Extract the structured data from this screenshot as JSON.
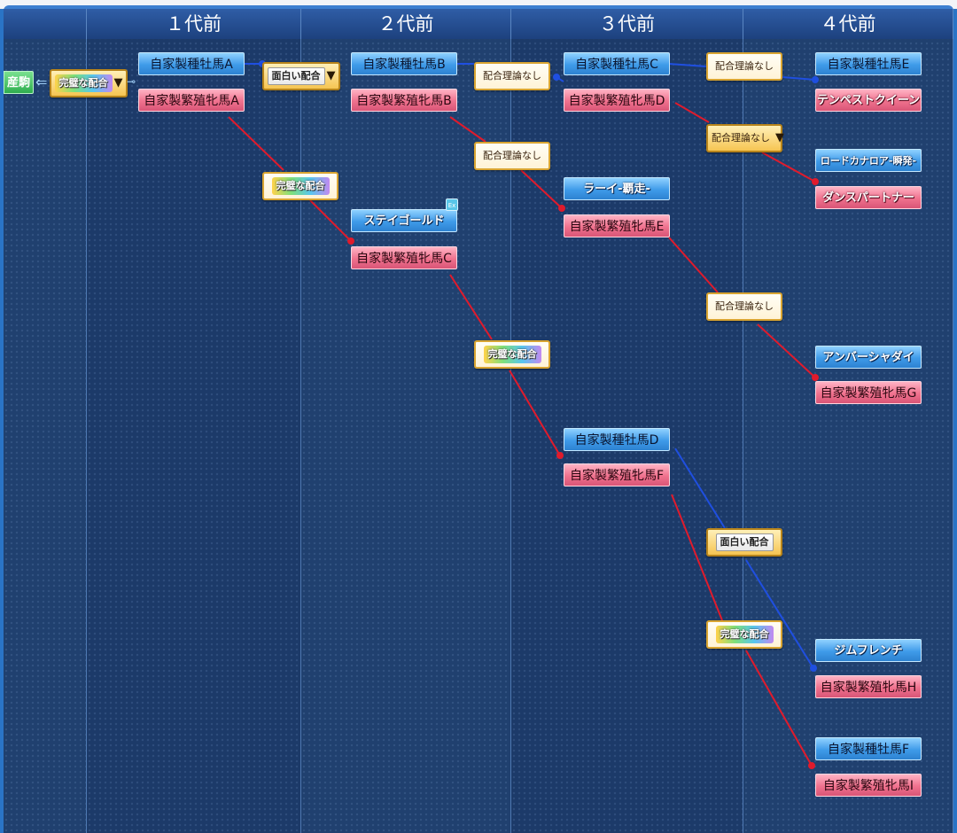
{
  "columns": [
    {
      "label": ""
    },
    {
      "label": "１代前"
    },
    {
      "label": "２代前"
    },
    {
      "label": "３代前"
    },
    {
      "label": "４代前"
    }
  ],
  "foal": {
    "label": "産駒"
  },
  "gen1": {
    "sire": "自家製種牡馬A",
    "dam": "自家製繁殖牝馬A"
  },
  "gen2": {
    "sire_b": "自家製種牡馬B",
    "dam_b": "自家製繁殖牝馬B",
    "sire_stay": "ステイゴールド",
    "dam_c": "自家製繁殖牝馬C",
    "stay_tag": "Ex"
  },
  "gen3": {
    "sire_c": "自家製種牡馬C",
    "dam_d": "自家製繁殖牝馬D",
    "sire_rai": "ラーイ-覇走-",
    "dam_e": "自家製繁殖牝馬E",
    "sire_d": "自家製種牡馬D",
    "dam_f": "自家製繁殖牝馬F"
  },
  "gen4": {
    "sire_e": "自家製種牡馬E",
    "dam_tempest": "テンペストクイーン",
    "sire_lord": "ロードカナロア-瞬発-",
    "dam_dance": "ダンスパートナー",
    "sire_amber": "アンバーシャダイ",
    "dam_g": "自家製繁殖牝馬G",
    "sire_jim": "ジムフレンチ",
    "dam_h": "自家製繁殖牝馬H",
    "sire_f": "自家製種牡馬F",
    "dam_i": "自家製繁殖牝馬I"
  },
  "badges": {
    "b0": "完璧な配合",
    "b1": "面白い配合",
    "b2": "配合理論なし",
    "b3": "配合理論なし",
    "b4": "配合理論なし",
    "b5": "完璧な配合",
    "b6": "配合理論なし",
    "b7": "完璧な配合",
    "b8": "面白い配合",
    "b9": "完璧な配合",
    "b10": "配合理論なし"
  },
  "icons": {
    "dropdown": "triangle-down-icon",
    "back": "left-arrow-icon",
    "link": "ring-link-icon"
  },
  "colors": {
    "sire_blue": "#3f9be9",
    "dam_pink": "#f0728e",
    "sire_line": "#1f4fe0",
    "dam_line": "#e01b2c",
    "badge_border": "#d9a532"
  }
}
